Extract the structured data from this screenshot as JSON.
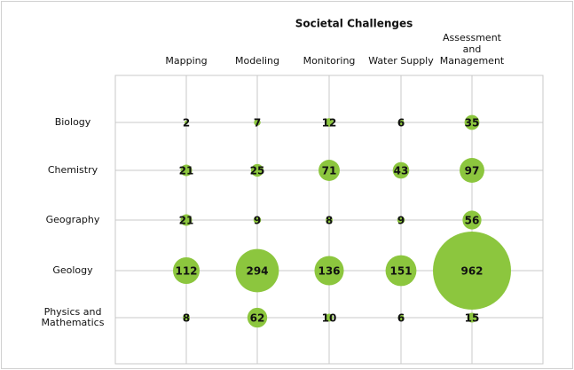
{
  "chart_data": {
    "type": "bubble",
    "title": "Societal Challenges",
    "categories": [
      [
        "Mapping"
      ],
      [
        "Modeling"
      ],
      [
        "Monitoring"
      ],
      [
        "Water Supply"
      ],
      [
        "Assessment",
        "and",
        "Management"
      ]
    ],
    "rows": [
      [
        "Biology"
      ],
      [
        "Chemistry"
      ],
      [
        "Geography"
      ],
      [
        "Geology"
      ],
      [
        "Physics and",
        "Mathematics"
      ]
    ],
    "values": [
      [
        2,
        7,
        12,
        6,
        35
      ],
      [
        21,
        25,
        71,
        43,
        97
      ],
      [
        21,
        9,
        8,
        9,
        56
      ],
      [
        112,
        294,
        136,
        151,
        962
      ],
      [
        8,
        62,
        10,
        6,
        15
      ]
    ],
    "color": "#8cc63e"
  }
}
